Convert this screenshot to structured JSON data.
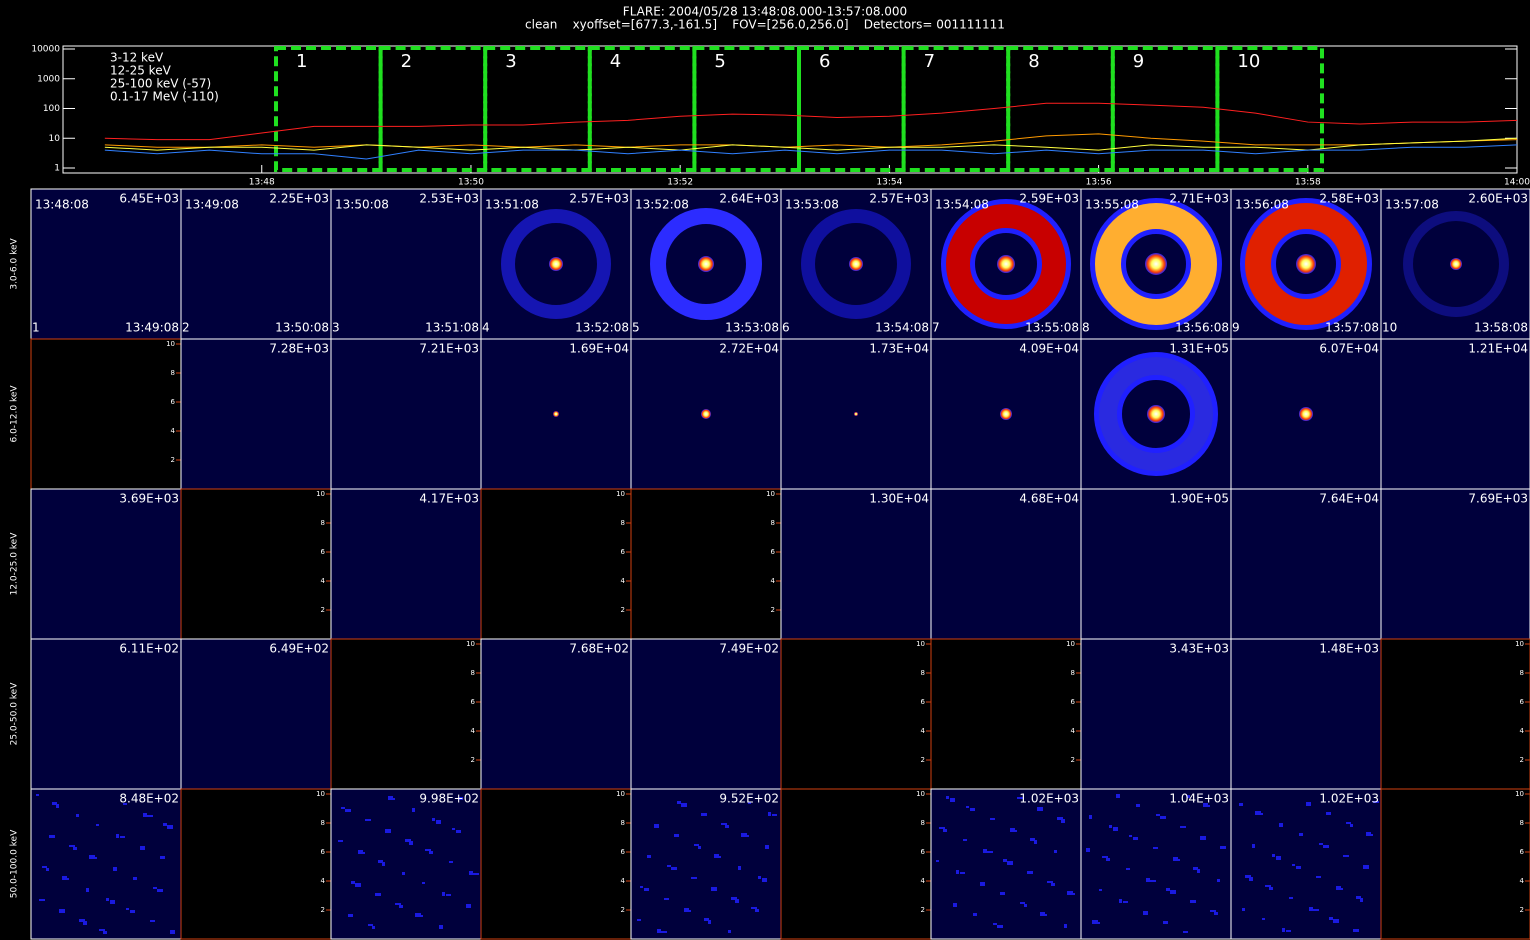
{
  "title": "FLARE: 2004/05/28 13:48:08.000-13:57:08.000",
  "subtitle": "clean    xyoffset=[677.3,-161.5]    FOV=[256.0,256.0]    Detectors= 001111111",
  "chart_data": {
    "type": "line",
    "log_y": true,
    "x": [
      826.5,
      827,
      827.5,
      828,
      828.5,
      829,
      829.5,
      830,
      830.5,
      831,
      831.5,
      832,
      832.5,
      833,
      833.5,
      834,
      834.5,
      835,
      835.5,
      836,
      836.5,
      837,
      837.5,
      838,
      838.5,
      839,
      839.5,
      840
    ],
    "xlim": [
      826.1,
      840
    ],
    "xticks": [
      {
        "value": 828,
        "label": "13:48"
      },
      {
        "value": 830,
        "label": "13:50"
      },
      {
        "value": 832,
        "label": "13:52"
      },
      {
        "value": 834,
        "label": "13:54"
      },
      {
        "value": 836,
        "label": "13:56"
      },
      {
        "value": 838,
        "label": "13:58"
      },
      {
        "value": 840,
        "label": "14:00"
      }
    ],
    "ylim": [
      1,
      10000
    ],
    "yticks": [
      1,
      10,
      100,
      1000,
      10000
    ],
    "series": [
      {
        "name": "3-12 keV",
        "color": "#ff2020",
        "values": [
          10,
          9,
          9,
          15,
          25,
          25,
          25,
          28,
          28,
          35,
          40,
          55,
          65,
          60,
          50,
          55,
          70,
          100,
          150,
          150,
          130,
          110,
          70,
          35,
          30,
          35,
          35,
          40
        ]
      },
      {
        "name": "12-25 keV",
        "color": "#ff9a00",
        "values": [
          6,
          5,
          5,
          6,
          5,
          6,
          5,
          6,
          5,
          6,
          5,
          6,
          6,
          5,
          6,
          5,
          6,
          8,
          12,
          14,
          10,
          8,
          6,
          6,
          6,
          7,
          8,
          9
        ]
      },
      {
        "name": "25-100 keV (-57)",
        "color": "#ffff40",
        "values": [
          5,
          4,
          5,
          5,
          4,
          6,
          5,
          4,
          5,
          4,
          5,
          4,
          6,
          5,
          4,
          5,
          5,
          6,
          5,
          4,
          6,
          5,
          5,
          4,
          6,
          7,
          8,
          10
        ]
      },
      {
        "name": "0.1-17 MeV (-110)",
        "color": "#3080ff",
        "values": [
          4,
          3,
          4,
          3,
          3,
          2,
          4,
          3,
          4,
          4,
          3,
          4,
          3,
          4,
          3,
          4,
          4,
          3,
          4,
          3,
          4,
          4,
          3,
          4,
          4,
          5,
          5,
          6
        ]
      }
    ]
  },
  "intervals": [
    "1",
    "2",
    "3",
    "4",
    "5",
    "6",
    "7",
    "8",
    "9",
    "10"
  ],
  "image_grid": {
    "energy_bands": [
      "3.0-6.0 keV",
      "6.0-12.0 keV",
      "12.0-25.0 keV",
      "25.0-50.0 keV",
      "50.0-100.0 keV"
    ],
    "start_times": [
      "13:48:08",
      "13:49:08",
      "13:50:08",
      "13:51:08",
      "13:52:08",
      "13:53:08",
      "13:54:08",
      "13:55:08",
      "13:56:08",
      "13:57:08"
    ],
    "end_times": [
      "13:49:08",
      "13:50:08",
      "13:51:08",
      "13:52:08",
      "13:53:08",
      "13:54:08",
      "13:55:08",
      "13:56:08",
      "13:57:08",
      "13:58:08"
    ],
    "peak_labels": [
      [
        "6.45E+03",
        "2.25E+03",
        "2.53E+03",
        "2.57E+03",
        "2.64E+03",
        "2.57E+03",
        "2.59E+03",
        "2.71E+03",
        "2.58E+03",
        "2.60E+03"
      ],
      [
        null,
        "7.28E+03",
        "7.21E+03",
        "1.69E+04",
        "2.72E+04",
        "1.73E+04",
        "4.09E+04",
        "1.31E+05",
        "6.07E+04",
        "1.21E+04"
      ],
      [
        "3.69E+03",
        null,
        "4.17E+03",
        null,
        null,
        "1.30E+04",
        "4.68E+04",
        "1.90E+05",
        "7.64E+04",
        "7.69E+03"
      ],
      [
        "6.11E+02",
        "6.49E+02",
        null,
        "7.68E+02",
        "7.49E+02",
        null,
        null,
        "3.43E+03",
        "1.48E+03",
        null
      ],
      [
        "8.48E+02",
        null,
        "9.98E+02",
        null,
        "9.52E+02",
        null,
        "1.02E+03",
        "1.04E+03",
        "1.02E+03",
        null
      ]
    ],
    "empty_axis_ticks": [
      2,
      4,
      6,
      8,
      10
    ]
  }
}
